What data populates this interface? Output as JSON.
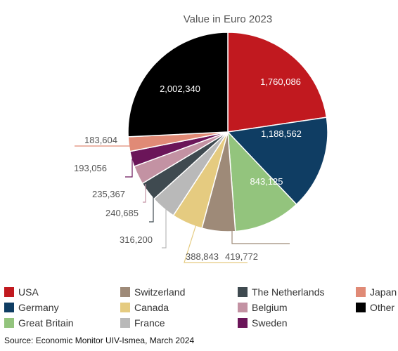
{
  "chart_data": {
    "type": "pie",
    "title": "Value in Euro 2023",
    "slices": [
      {
        "label": "USA",
        "value": 1760086,
        "value_label": "1,760,086",
        "color": "#c1191f"
      },
      {
        "label": "Germany",
        "value": 1188562,
        "value_label": "1,188,562",
        "color": "#0f3d63"
      },
      {
        "label": "Great Britain",
        "value": 843125,
        "value_label": "843,125",
        "color": "#93c47d"
      },
      {
        "label": "Switzerland",
        "value": 419772,
        "value_label": "419,772",
        "color": "#9e8a78"
      },
      {
        "label": "Canada",
        "value": 388843,
        "value_label": "388,843",
        "color": "#e5cb80"
      },
      {
        "label": "France",
        "value": 316200,
        "value_label": "316,200",
        "color": "#b9b9b9"
      },
      {
        "label": "The Netherlands",
        "value": 240685,
        "value_label": "240,685",
        "color": "#3f4a50"
      },
      {
        "label": "Belgium",
        "value": 235367,
        "value_label": "235,367",
        "color": "#c392a3"
      },
      {
        "label": "Sweden",
        "value": 193056,
        "value_label": "193,056",
        "color": "#6b1559"
      },
      {
        "label": "Japan",
        "value": 183604,
        "value_label": "183,604",
        "color": "#e08a76"
      },
      {
        "label": "Other",
        "value": 2002340,
        "value_label": "2,002,340",
        "color": "#000000"
      }
    ],
    "legend_order": [
      "USA",
      "Germany",
      "Great Britain",
      "Switzerland",
      "Canada",
      "France",
      "The Netherlands",
      "Belgium",
      "Sweden",
      "Japan",
      "Other"
    ],
    "legend_position": "bottom"
  },
  "source": "Source: Economic Monitor UIV-Ismea, March 2024"
}
